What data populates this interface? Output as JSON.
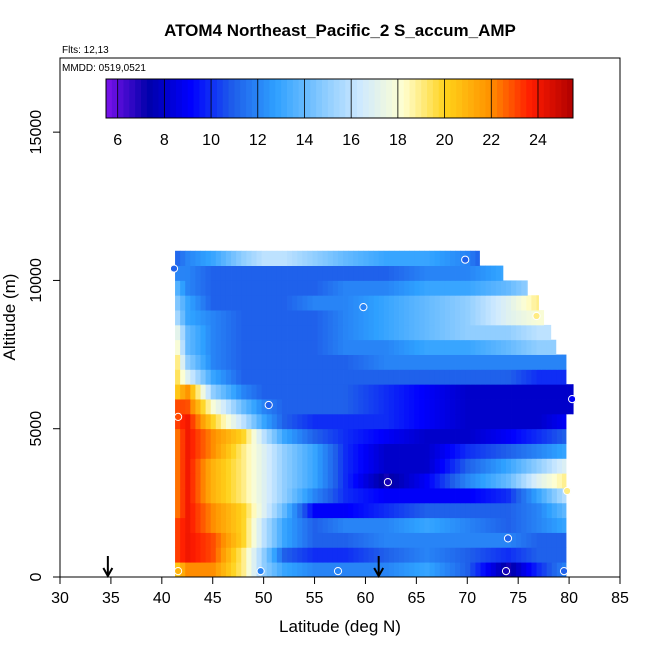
{
  "chart_data": {
    "type": "heatmap",
    "title": "ATOM4 Northeast_Pacific_2 S_accum_AMP",
    "flights_label": "Flts: 12,13",
    "dates_label": "MMDD: 0519,0521",
    "xlabel": "Latitude (deg N)",
    "ylabel": "Altitude (m)",
    "xlim": [
      30,
      85
    ],
    "ylim": [
      0,
      17500
    ],
    "x_ticks": [
      30,
      35,
      40,
      45,
      50,
      55,
      60,
      65,
      70,
      75,
      80,
      85
    ],
    "y_ticks": [
      0,
      5000,
      10000,
      15000
    ],
    "colorbar": {
      "range": [
        5.5,
        25.5
      ],
      "ticks": [
        6,
        8,
        10,
        12,
        14,
        16,
        18,
        20,
        22,
        24
      ],
      "colors": [
        "#7b12ec",
        "#0000aa",
        "#0000ff",
        "#1f5fea",
        "#2ea0ff",
        "#7fc6ff",
        "#cfeaff",
        "#ffffd0",
        "#ffd21a",
        "#ff9500",
        "#ff1c00",
        "#b00000"
      ]
    },
    "arrows_latitude": [
      34.7,
      61.3
    ],
    "sample_points": [
      {
        "lat": 41.2,
        "alt": 10400,
        "value": 11
      },
      {
        "lat": 69.8,
        "alt": 10700,
        "value": 11
      },
      {
        "lat": 59.8,
        "alt": 9100,
        "value": 12
      },
      {
        "lat": 76.8,
        "alt": 8800,
        "value": 19
      },
      {
        "lat": 41.6,
        "alt": 5400,
        "value": 23
      },
      {
        "lat": 50.5,
        "alt": 5800,
        "value": 11
      },
      {
        "lat": 80.3,
        "alt": 6000,
        "value": 9
      },
      {
        "lat": 62.2,
        "alt": 3200,
        "value": 7
      },
      {
        "lat": 79.8,
        "alt": 2900,
        "value": 19
      },
      {
        "lat": 74.0,
        "alt": 1300,
        "value": 11
      },
      {
        "lat": 41.6,
        "alt": 200,
        "value": 21
      },
      {
        "lat": 49.7,
        "alt": 200,
        "value": 12
      },
      {
        "lat": 57.3,
        "alt": 200,
        "value": 12
      },
      {
        "lat": 73.8,
        "alt": 200,
        "value": 7
      },
      {
        "lat": 79.5,
        "alt": 200,
        "value": 11
      }
    ],
    "curtain": {
      "alt_bins": [
        0,
        500,
        1000,
        1500,
        2000,
        2500,
        3000,
        3500,
        4000,
        4500,
        5000,
        5500,
        6000,
        6500,
        7000,
        7500,
        8000,
        8500,
        9000,
        9500,
        10000,
        10500
      ],
      "lat_min": 41.3,
      "lat_max_by_row": [
        79.7,
        79.7,
        79.7,
        79.7,
        79.7,
        79.7,
        79.7,
        79.7,
        79.7,
        79.7,
        79.7,
        80.4,
        80.4,
        79.7,
        79.7,
        78.7,
        78.2,
        77.5,
        77.0,
        75.9,
        73.5,
        71.2
      ],
      "profiles": [
        {
          "lat": [
            41.3,
            42.5,
            45,
            48,
            50,
            52,
            55,
            58,
            62,
            66,
            70,
            74,
            77,
            79.7
          ],
          "val": [
            20,
            22,
            22,
            19,
            15,
            13,
            12,
            12,
            12,
            13,
            11,
            7,
            10,
            12
          ]
        },
        {
          "lat": [
            41.3,
            42.5,
            45,
            48,
            50,
            52,
            55,
            58,
            62,
            66,
            70,
            74,
            77,
            79.7
          ],
          "val": [
            23,
            24,
            23,
            19,
            15,
            11,
            10,
            10,
            11,
            12,
            11,
            10,
            11,
            11
          ]
        },
        {
          "lat": [
            41.3,
            42.5,
            45,
            48,
            50,
            52,
            55,
            58,
            62,
            66,
            70,
            74,
            77,
            79.7
          ],
          "val": [
            23,
            24,
            23,
            20,
            16,
            13,
            11,
            11,
            12,
            12,
            12,
            12,
            11,
            11
          ]
        },
        {
          "lat": [
            41.3,
            42.5,
            45,
            48,
            50,
            52,
            55,
            58,
            62,
            66,
            70,
            74,
            77,
            79.7
          ],
          "val": [
            23,
            24,
            22,
            20,
            16,
            13,
            11,
            12,
            12,
            13,
            12,
            11,
            12,
            13
          ]
        },
        {
          "lat": [
            41.3,
            42.5,
            45,
            48,
            50,
            52,
            55,
            58,
            62,
            66,
            70,
            74,
            77,
            79.7
          ],
          "val": [
            22,
            24,
            22,
            20,
            17,
            14,
            9,
            9,
            10,
            11,
            11,
            11,
            12,
            14
          ]
        },
        {
          "lat": [
            41.3,
            42.5,
            45,
            48,
            50,
            52,
            55,
            58,
            62,
            66,
            70,
            74,
            77,
            79.7
          ],
          "val": [
            22,
            24,
            21,
            19,
            17,
            15,
            12,
            10,
            9,
            9,
            9,
            10,
            13,
            16
          ]
        },
        {
          "lat": [
            41.3,
            42.5,
            45,
            48,
            50,
            52,
            55,
            58,
            62,
            66,
            70,
            74,
            77,
            79.7
          ],
          "val": [
            22,
            24,
            21,
            19,
            17,
            15,
            13,
            10,
            7,
            9,
            12,
            14,
            17,
            19
          ]
        },
        {
          "lat": [
            41.3,
            42.5,
            45,
            48,
            50,
            52,
            55,
            58,
            62,
            66,
            70,
            74,
            77,
            79.7
          ],
          "val": [
            22,
            24,
            21,
            19,
            17,
            15,
            13,
            10,
            8,
            8,
            11,
            13,
            15,
            17
          ]
        },
        {
          "lat": [
            41.3,
            42.5,
            45,
            48,
            50,
            52,
            55,
            58,
            62,
            66,
            70,
            74,
            77,
            79.7
          ],
          "val": [
            22,
            24,
            22,
            19,
            17,
            15,
            13,
            10,
            8,
            8,
            10,
            11,
            12,
            13
          ]
        },
        {
          "lat": [
            41.3,
            42.5,
            45,
            48,
            50,
            52,
            55,
            58,
            62,
            66,
            70,
            74,
            77,
            79.7
          ],
          "val": [
            22,
            24,
            22,
            20,
            16,
            13,
            11,
            10,
            9,
            8,
            8,
            9,
            10,
            11
          ]
        },
        {
          "lat": [
            41.3,
            42.5,
            45,
            48,
            50,
            52,
            55,
            58,
            62,
            66,
            70,
            74,
            77,
            79.7
          ],
          "val": [
            23,
            24,
            20,
            16,
            13,
            11,
            10,
            10,
            10,
            9,
            8,
            8,
            8,
            9
          ]
        },
        {
          "lat": [
            41.3,
            42.5,
            45,
            48,
            50,
            52,
            55,
            58,
            62,
            66,
            70,
            74,
            77,
            80.4
          ],
          "val": [
            23,
            23,
            18,
            14,
            12,
            11,
            11,
            11,
            10,
            9,
            8,
            8,
            8,
            8
          ]
        },
        {
          "lat": [
            41.3,
            42.5,
            45,
            48,
            50,
            52,
            55,
            58,
            62,
            66,
            70,
            74,
            77,
            80.4
          ],
          "val": [
            20,
            22,
            15,
            12,
            11,
            11,
            11,
            11,
            10,
            9,
            8,
            8,
            8,
            8
          ]
        },
        {
          "lat": [
            41.3,
            42.5,
            45,
            48,
            50,
            52,
            55,
            58,
            62,
            66,
            70,
            74,
            77,
            79.7
          ],
          "val": [
            20,
            17,
            13,
            11,
            11,
            11,
            11,
            11,
            11,
            11,
            11,
            11,
            10,
            10
          ]
        },
        {
          "lat": [
            41.3,
            42.5,
            45,
            48,
            50,
            52,
            55,
            58,
            62,
            66,
            70,
            74,
            77,
            79.7
          ],
          "val": [
            20,
            15,
            12,
            11,
            11,
            11,
            11,
            11,
            12,
            12,
            12,
            12,
            12,
            12
          ]
        },
        {
          "lat": [
            41.3,
            42.5,
            45,
            48,
            50,
            52,
            55,
            58,
            62,
            66,
            70,
            74,
            77,
            78.7
          ],
          "val": [
            19,
            14,
            12,
            11,
            11,
            11,
            11,
            12,
            12,
            13,
            13,
            14,
            15,
            15
          ]
        },
        {
          "lat": [
            41.3,
            42.5,
            45,
            48,
            50,
            52,
            55,
            58,
            62,
            66,
            70,
            74,
            77,
            78.2
          ],
          "val": [
            18,
            14,
            12,
            11,
            11,
            11,
            11,
            12,
            13,
            14,
            15,
            15,
            16,
            16
          ]
        },
        {
          "lat": [
            41.3,
            42.5,
            45,
            48,
            50,
            52,
            55,
            58,
            62,
            66,
            70,
            74,
            77,
            77.5
          ],
          "val": [
            16,
            13,
            12,
            11,
            11,
            11,
            11,
            12,
            13,
            14,
            15,
            17,
            18,
            18
          ]
        },
        {
          "lat": [
            41.3,
            42.5,
            45,
            48,
            50,
            52,
            55,
            58,
            62,
            66,
            70,
            74,
            77
          ],
          "val": [
            15,
            13,
            11,
            11,
            11,
            11,
            12,
            12,
            13,
            14,
            15,
            17,
            19
          ]
        },
        {
          "lat": [
            41.3,
            42.5,
            45,
            48,
            50,
            52,
            55,
            58,
            62,
            66,
            70,
            74,
            75.9
          ],
          "val": [
            14,
            12,
            11,
            11,
            11,
            11,
            11,
            12,
            12,
            13,
            13,
            14,
            15
          ]
        },
        {
          "lat": [
            41.3,
            42.5,
            45,
            48,
            50,
            52,
            55,
            58,
            62,
            66,
            70,
            73.5
          ],
          "val": [
            12,
            12,
            11,
            11,
            11,
            11,
            11,
            11,
            11,
            12,
            12,
            13
          ]
        },
        {
          "lat": [
            41.3,
            42.5,
            45,
            48,
            50,
            52,
            55,
            58,
            62,
            66,
            70,
            71.2
          ],
          "val": [
            11,
            12,
            13,
            15,
            16,
            16,
            15,
            14,
            13,
            13,
            12,
            11
          ]
        }
      ]
    }
  }
}
